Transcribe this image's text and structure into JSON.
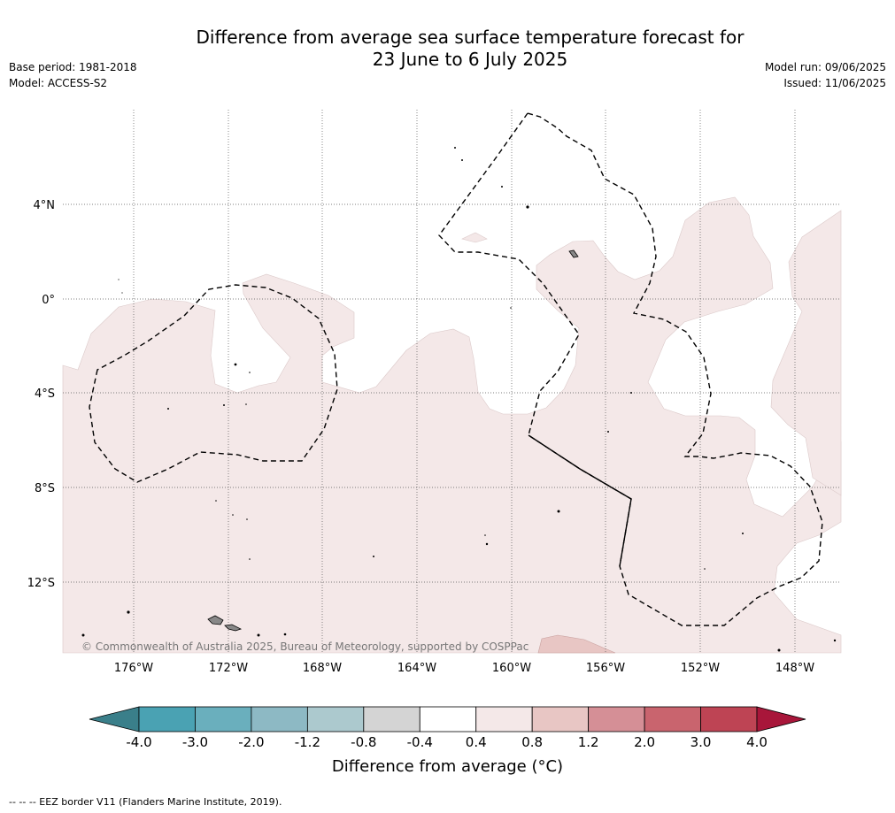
{
  "header": {
    "title_line1": "Difference from average sea surface temperature forecast for",
    "title_line2": "23 June to 6 July 2025",
    "base_period": "Base period: 1981-2018",
    "model": "Model: ACCESS-S2",
    "model_run": "Model run: 09/06/2025",
    "issued": "Issued: 11/06/2025"
  },
  "map": {
    "lon_labels": [
      "176°W",
      "172°W",
      "168°W",
      "164°W",
      "160°W",
      "156°W",
      "152°W",
      "148°W"
    ],
    "lat_labels": [
      "4°N",
      "0°",
      "4°S",
      "8°S",
      "12°S"
    ],
    "copyright": "© Commonwealth of Australia 2025, Bureau of Meteorology, supported by COSPPac",
    "colors": {
      "anomaly_04_08": "#f4e8e8",
      "anomaly_08_12": "#e8c6c4",
      "neutral": "#ffffff",
      "land": "#9a9a9a",
      "eez_border": "#000000",
      "grid": "#555555"
    }
  },
  "colorbar": {
    "tick_labels": [
      "-4.0",
      "-3.0",
      "-2.0",
      "-1.2",
      "-0.8",
      "-0.4",
      "0.4",
      "0.8",
      "1.2",
      "2.0",
      "3.0",
      "4.0"
    ],
    "colors": [
      "#3a7f8a",
      "#4aa2b3",
      "#6aafbd",
      "#8db9c4",
      "#acc9ce",
      "#d4d4d4",
      "#ffffff",
      "#f4e8e8",
      "#e8c6c4",
      "#d58f96",
      "#c9646e",
      "#be4454",
      "#a8163a"
    ],
    "label": "Difference from average (°C)"
  },
  "legend": {
    "eez_note": "--  --  -- EEZ border V11 (Flanders Marine Institute, 2019)."
  }
}
